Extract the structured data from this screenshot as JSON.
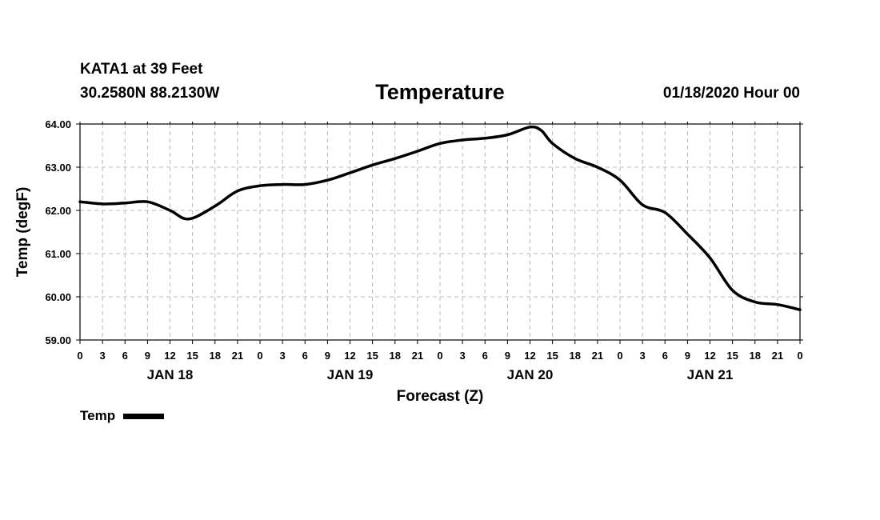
{
  "header": {
    "station": "KATA1 at 39 Feet",
    "coords": "30.2580N 88.2130W",
    "title": "Temperature",
    "runtime": "01/18/2020 Hour 00"
  },
  "legend": {
    "label": "Temp"
  },
  "chart_data": {
    "type": "line",
    "title": "Temperature",
    "xlabel": "Forecast (Z)",
    "ylabel": "Temp (degF)",
    "ylim": [
      59.0,
      64.0
    ],
    "yticks": [
      "59.00",
      "60.00",
      "61.00",
      "62.00",
      "63.00",
      "64.00"
    ],
    "xlim": [
      0,
      96
    ],
    "xtick_labels": [
      "0",
      "3",
      "6",
      "9",
      "12",
      "15",
      "18",
      "21",
      "0",
      "3",
      "6",
      "9",
      "12",
      "15",
      "18",
      "21",
      "0",
      "3",
      "6",
      "9",
      "12",
      "15",
      "18",
      "21",
      "0",
      "3",
      "6",
      "9",
      "12",
      "15",
      "18",
      "21",
      "0"
    ],
    "day_labels": [
      {
        "label": "JAN 18",
        "hour": 12
      },
      {
        "label": "JAN 19",
        "hour": 36
      },
      {
        "label": "JAN 20",
        "hour": 60
      },
      {
        "label": "JAN 21",
        "hour": 84
      }
    ],
    "grid": true,
    "legend": "bottom-left",
    "series": [
      {
        "name": "Temp",
        "x": [
          0,
          3,
          6,
          9,
          12,
          14.5,
          18,
          21,
          24,
          27,
          30,
          33,
          36,
          39,
          42,
          45,
          48,
          51,
          54,
          57,
          60,
          61.5,
          63,
          66,
          69,
          72,
          75,
          78,
          81,
          84,
          87,
          90,
          93,
          96
        ],
        "values": [
          62.2,
          62.15,
          62.17,
          62.2,
          62.0,
          61.8,
          62.1,
          62.45,
          62.57,
          62.6,
          62.6,
          62.7,
          62.87,
          63.05,
          63.2,
          63.37,
          63.55,
          63.63,
          63.67,
          63.75,
          63.93,
          63.85,
          63.55,
          63.2,
          63.0,
          62.7,
          62.13,
          61.95,
          61.45,
          60.9,
          60.15,
          59.88,
          59.82,
          59.7
        ]
      }
    ]
  }
}
